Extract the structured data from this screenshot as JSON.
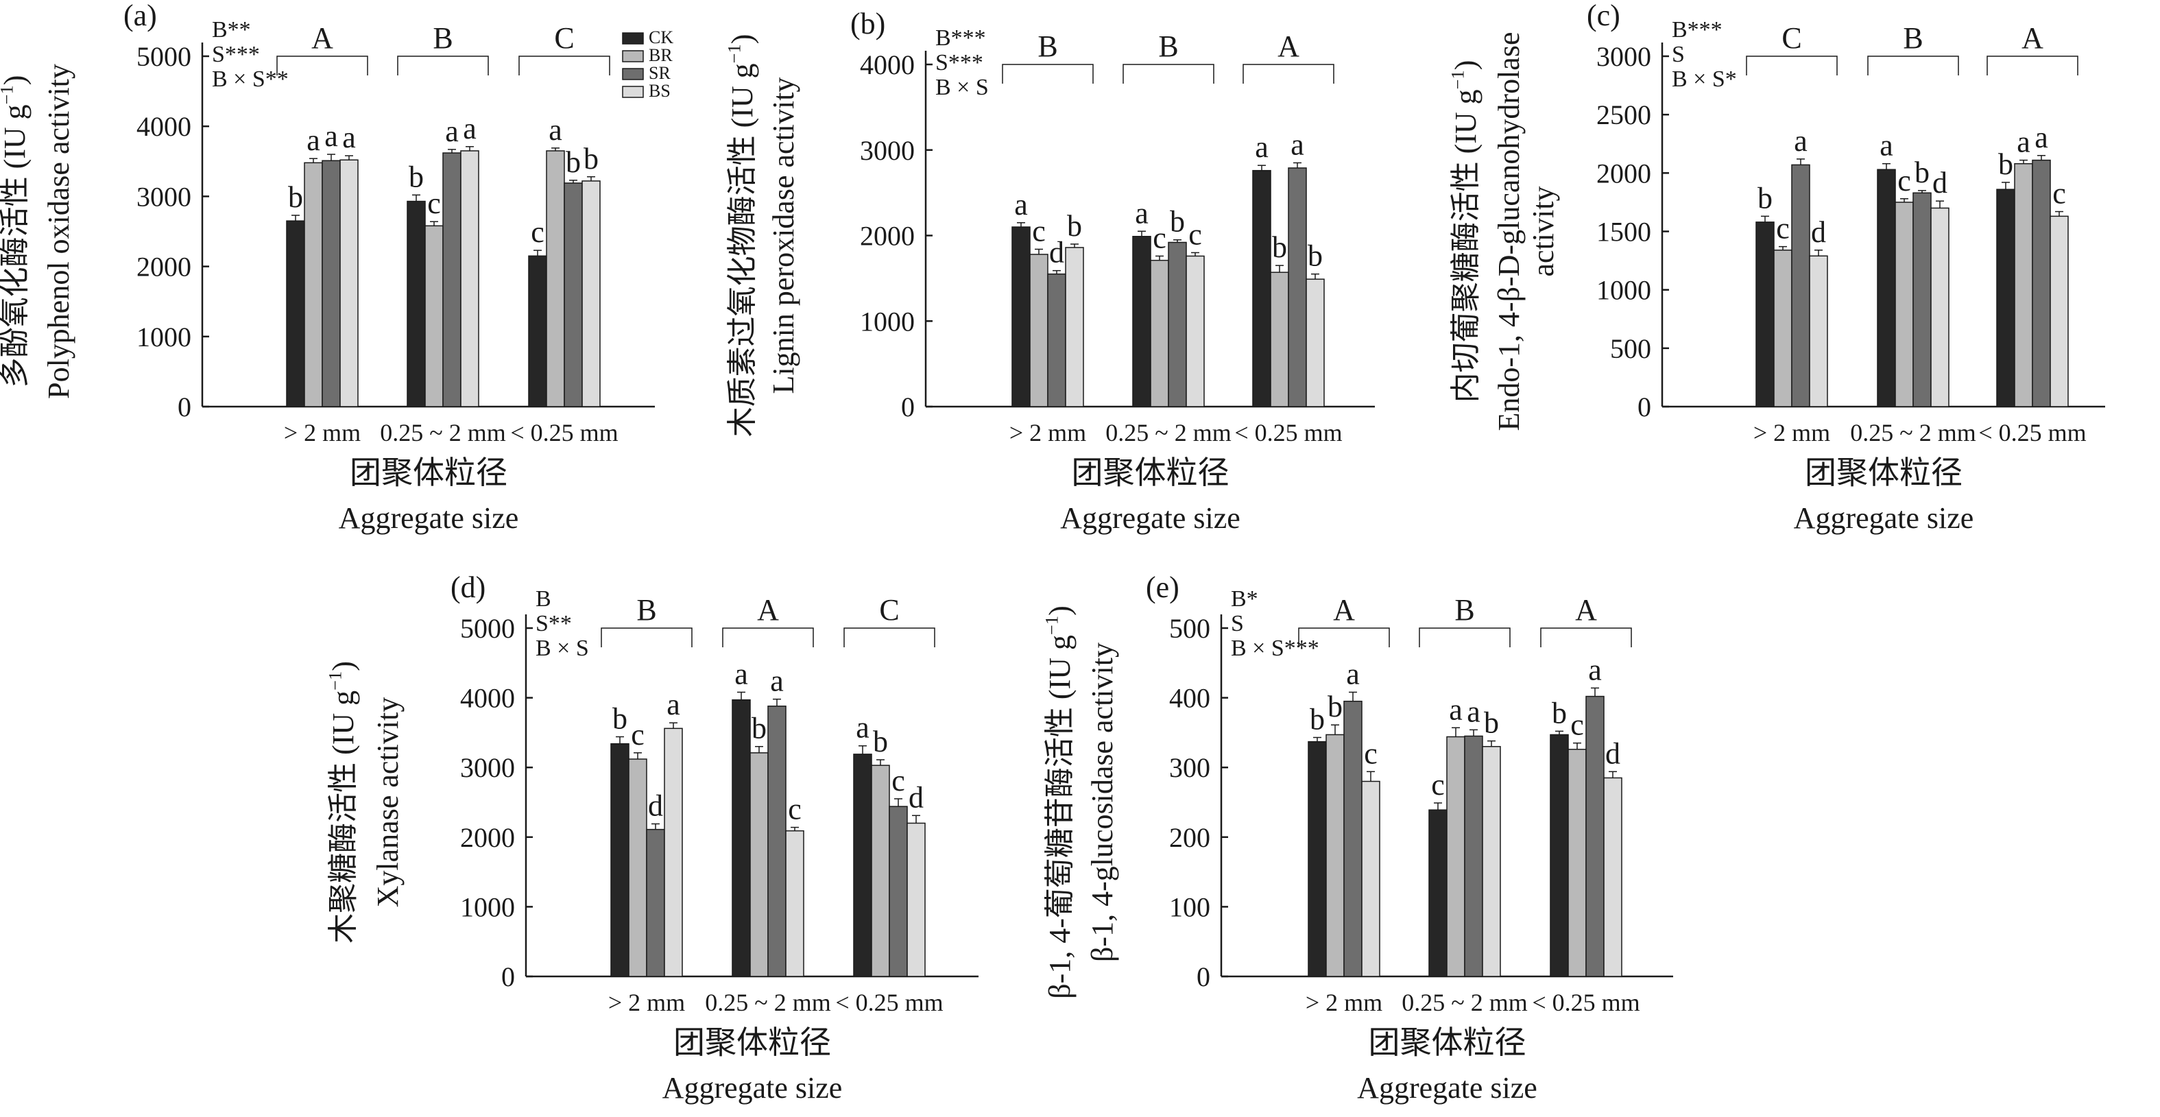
{
  "legend": [
    {
      "label": "CK",
      "color": "#262626"
    },
    {
      "label": "BR",
      "color": "#b9b9b9"
    },
    {
      "label": "SR",
      "color": "#6e6e6e"
    },
    {
      "label": "BS",
      "color": "#dcdcdc"
    }
  ],
  "xlabel_cn": "团聚体粒径",
  "xlabel_en": "Aggregate size",
  "chart_data": [
    {
      "type": "bar",
      "panel": "(a)",
      "ylabel_cn": "多酚氧化酶活性 (IU g⁻¹)",
      "ylabel_en": "Polyphenol oxidase activity",
      "categories": [
        "> 2 mm",
        "0.25 ~ 2 mm",
        "< 0.25 mm"
      ],
      "ylim": [
        0,
        5000
      ],
      "yticks": [
        0,
        1000,
        2000,
        3000,
        4000,
        5000
      ],
      "series": [
        {
          "name": "CK",
          "values": [
            2650,
            2930,
            2150
          ],
          "errors": [
            80,
            90,
            80
          ]
        },
        {
          "name": "BR",
          "values": [
            3480,
            2580,
            3650
          ],
          "errors": [
            60,
            60,
            40
          ]
        },
        {
          "name": "SR",
          "values": [
            3510,
            3620,
            3190
          ],
          "errors": [
            90,
            50,
            40
          ]
        },
        {
          "name": "BS",
          "values": [
            3520,
            3650,
            3220
          ],
          "errors": [
            60,
            60,
            60
          ]
        }
      ],
      "letters": [
        [
          "b",
          "a",
          "a",
          "a"
        ],
        [
          "b",
          "c",
          "a",
          "a"
        ],
        [
          "c",
          "a",
          "b",
          "b"
        ]
      ],
      "group_letters": [
        "A",
        "B",
        "C"
      ],
      "stats": [
        "B**",
        "S***",
        "B × S**"
      ]
    },
    {
      "type": "bar",
      "panel": "(b)",
      "ylabel_cn": "木质素过氧化物酶活性 (IU g⁻¹)",
      "ylabel_en": "Lignin peroxidase activity",
      "categories": [
        "> 2 mm",
        "0.25 ~ 2 mm",
        "< 0.25 mm"
      ],
      "ylim": [
        0,
        4000
      ],
      "yticks": [
        0,
        1000,
        2000,
        3000,
        4000
      ],
      "series": [
        {
          "name": "CK",
          "values": [
            2100,
            1990,
            2760
          ],
          "errors": [
            50,
            60,
            60
          ]
        },
        {
          "name": "BR",
          "values": [
            1780,
            1710,
            1570
          ],
          "errors": [
            60,
            50,
            80
          ]
        },
        {
          "name": "SR",
          "values": [
            1550,
            1920,
            2790
          ],
          "errors": [
            40,
            30,
            60
          ]
        },
        {
          "name": "BS",
          "values": [
            1860,
            1760,
            1490
          ],
          "errors": [
            40,
            40,
            60
          ]
        }
      ],
      "letters": [
        [
          "a",
          "c",
          "d",
          "b"
        ],
        [
          "a",
          "c",
          "b",
          "c"
        ],
        [
          "a",
          "b",
          "a",
          "b"
        ]
      ],
      "group_letters": [
        "B",
        "B",
        "A"
      ],
      "stats": [
        "B***",
        "S***",
        "B × S"
      ]
    },
    {
      "type": "bar",
      "panel": "(c)",
      "ylabel_cn": "内切葡聚糖酶活性 (IU g⁻¹)",
      "ylabel_en": "Endo-1, 4-β-D-glucanohydrolase activity",
      "categories": [
        "> 2 mm",
        "0.25 ~ 2 mm",
        "< 0.25 mm"
      ],
      "ylim": [
        0,
        3000
      ],
      "yticks": [
        0,
        500,
        1000,
        1500,
        2000,
        2500,
        3000
      ],
      "series": [
        {
          "name": "CK",
          "values": [
            1580,
            2030,
            1860
          ],
          "errors": [
            50,
            50,
            60
          ]
        },
        {
          "name": "BR",
          "values": [
            1340,
            1750,
            2080
          ],
          "errors": [
            30,
            30,
            30
          ]
        },
        {
          "name": "SR",
          "values": [
            2070,
            1830,
            2110
          ],
          "errors": [
            50,
            20,
            40
          ]
        },
        {
          "name": "BS",
          "values": [
            1290,
            1700,
            1630
          ],
          "errors": [
            50,
            60,
            40
          ]
        }
      ],
      "letters": [
        [
          "b",
          "c",
          "a",
          "d"
        ],
        [
          "a",
          "c",
          "b",
          "d"
        ],
        [
          "b",
          "a",
          "a",
          "c"
        ]
      ],
      "group_letters": [
        "C",
        "B",
        "A"
      ],
      "stats": [
        "B***",
        "S",
        "B × S*"
      ]
    },
    {
      "type": "bar",
      "panel": "(d)",
      "ylabel_cn": "木聚糖酶活性 (IU g⁻¹)",
      "ylabel_en": "Xylanase activity",
      "categories": [
        "> 2 mm",
        "0.25 ~ 2 mm",
        "< 0.25 mm"
      ],
      "ylim": [
        0,
        5000
      ],
      "yticks": [
        0,
        1000,
        2000,
        3000,
        4000,
        5000
      ],
      "series": [
        {
          "name": "CK",
          "values": [
            3340,
            3970,
            3190
          ],
          "errors": [
            100,
            110,
            120
          ]
        },
        {
          "name": "BR",
          "values": [
            3120,
            3210,
            3030
          ],
          "errors": [
            90,
            90,
            80
          ]
        },
        {
          "name": "SR",
          "values": [
            2110,
            3880,
            2440
          ],
          "errors": [
            80,
            100,
            110
          ]
        },
        {
          "name": "BS",
          "values": [
            3560,
            2090,
            2200
          ],
          "errors": [
            80,
            50,
            110
          ]
        }
      ],
      "letters": [
        [
          "b",
          "c",
          "d",
          "a"
        ],
        [
          "a",
          "b",
          "a",
          "c"
        ],
        [
          "a",
          "b",
          "c",
          "d"
        ]
      ],
      "group_letters": [
        "B",
        "A",
        "C"
      ],
      "stats": [
        "B",
        "S**",
        "B × S"
      ]
    },
    {
      "type": "bar",
      "panel": "(e)",
      "ylabel_cn": "β-1, 4-葡萄糖苷酶活性 (IU g⁻¹)",
      "ylabel_en": "β-1, 4-glucosidase activity",
      "categories": [
        "> 2 mm",
        "0.25 ~ 2 mm",
        "< 0.25 mm"
      ],
      "ylim": [
        0,
        500
      ],
      "yticks": [
        0,
        100,
        200,
        300,
        400,
        500
      ],
      "series": [
        {
          "name": "CK",
          "values": [
            337,
            239,
            347
          ],
          "errors": [
            6,
            10,
            5
          ]
        },
        {
          "name": "BR",
          "values": [
            347,
            344,
            326
          ],
          "errors": [
            14,
            13,
            9
          ]
        },
        {
          "name": "SR",
          "values": [
            395,
            345,
            402
          ],
          "errors": [
            13,
            9,
            12
          ]
        },
        {
          "name": "BS",
          "values": [
            280,
            330,
            285
          ],
          "errors": [
            14,
            8,
            9
          ]
        }
      ],
      "letters": [
        [
          "b",
          "b",
          "a",
          "c"
        ],
        [
          "c",
          "a",
          "a",
          "b"
        ],
        [
          "b",
          "c",
          "a",
          "d"
        ]
      ],
      "group_letters": [
        "A",
        "B",
        "A"
      ],
      "stats": [
        "B*",
        "S",
        "B × S***"
      ]
    }
  ]
}
